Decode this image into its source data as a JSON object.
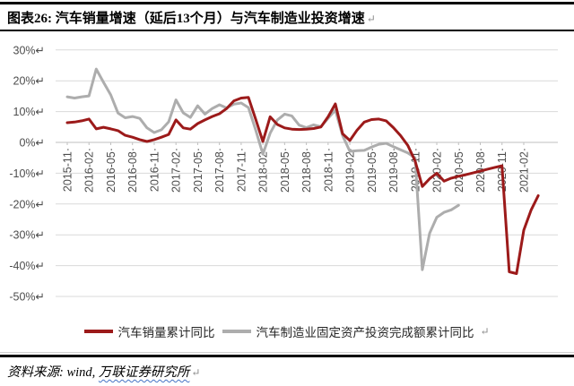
{
  "header": {
    "title": "图表26: 汽车销量增速（延后13个月）与汽车制造业投资增速",
    "paragraph_mark": "↵"
  },
  "footer": {
    "source_prefix": "资料来源: wind, ",
    "source_org": "万联证券研究所",
    "paragraph_mark": "↵"
  },
  "colors": {
    "sales_line": "#9C1A1A",
    "fai_line": "#ADADAD",
    "axis_text": "#4d4d4d",
    "gridline": "#D9D9D9",
    "axis_line": "#BFBFBF",
    "squiggle": "#4472C4",
    "paragraph_mark": "#8a8a8a"
  },
  "chart_data": {
    "type": "line",
    "title": "汽车销量增速（延后13个月）与汽车制造业投资增速",
    "xlabel": "",
    "ylabel": "",
    "ylim": [
      -50,
      30
    ],
    "grid": true,
    "legend_position": "bottom",
    "y_tick_labels": [
      "30%",
      "20%",
      "10%",
      "0%",
      "-10%",
      "-20%",
      "-30%",
      "-40%",
      "-50%"
    ],
    "x_tick_labels": [
      "2015-11",
      "2016-02",
      "2016-05",
      "2016-08",
      "2016-11",
      "2017-02",
      "2017-05",
      "2017-08",
      "2017-11",
      "2018-02",
      "2018-05",
      "2018-08",
      "2018-11",
      "2019-02",
      "2019-05",
      "2019-08",
      "2019-11",
      "2020-02",
      "2020-05",
      "2020-08",
      "2020-11",
      "2021-02"
    ],
    "x_tick_every_months": 3,
    "marks": {
      "y_suffix": "↵",
      "x_suffix": "·"
    },
    "series": [
      {
        "name": "汽车销量累计同比",
        "color": "#9C1A1A",
        "start_month": "2015-11",
        "unit": "percent_yoy",
        "values": [
          6.4,
          6.6,
          7.0,
          7.6,
          4.4,
          4.9,
          4.4,
          3.8,
          2.3,
          1.7,
          0.9,
          0.3,
          0.9,
          1.7,
          2.6,
          7.3,
          4.7,
          4.3,
          6.1,
          7.3,
          8.4,
          9.3,
          11.0,
          13.5,
          14.4,
          14.6,
          7.5,
          0.3,
          8.3,
          5.8,
          4.7,
          4.3,
          4.2,
          4.3,
          4.5,
          5.0,
          8.3,
          12.5,
          2.8,
          0.6,
          4.0,
          6.6,
          7.4,
          7.6,
          7.0,
          4.8,
          2.2,
          -1.0,
          -6.0,
          -14.3,
          -11.8,
          -10.0,
          -12.6,
          -11.6,
          -11.0,
          -10.5,
          -9.9,
          -9.3,
          -8.7,
          -8.1,
          -7.6,
          -42.0,
          -42.6,
          -28.5,
          -22.0,
          -17.3
        ]
      },
      {
        "name": "汽车制造业固定资产投资完成额累计同比",
        "color": "#ADADAD",
        "start_month": "2015-11",
        "unit": "percent_yoy",
        "values": [
          14.8,
          14.4,
          14.8,
          15.1,
          23.8,
          19.5,
          15.4,
          9.5,
          8.0,
          8.4,
          7.8,
          4.7,
          3.2,
          4.1,
          6.7,
          13.8,
          9.6,
          8.1,
          11.9,
          9.2,
          11.0,
          12.2,
          11.2,
          12.4,
          12.8,
          11.3,
          4.0,
          -3.8,
          3.0,
          7.3,
          9.2,
          8.6,
          5.6,
          4.8,
          5.7,
          5.1,
          7.8,
          10.5,
          2.2,
          -2.9,
          -2.7,
          -2.6,
          -1.5,
          -0.6,
          -0.3,
          -1.4,
          -2.4,
          -3.4,
          -5.0,
          -41.3,
          -29.5,
          -24.3,
          -22.7,
          -21.9,
          -20.4
        ]
      }
    ]
  }
}
